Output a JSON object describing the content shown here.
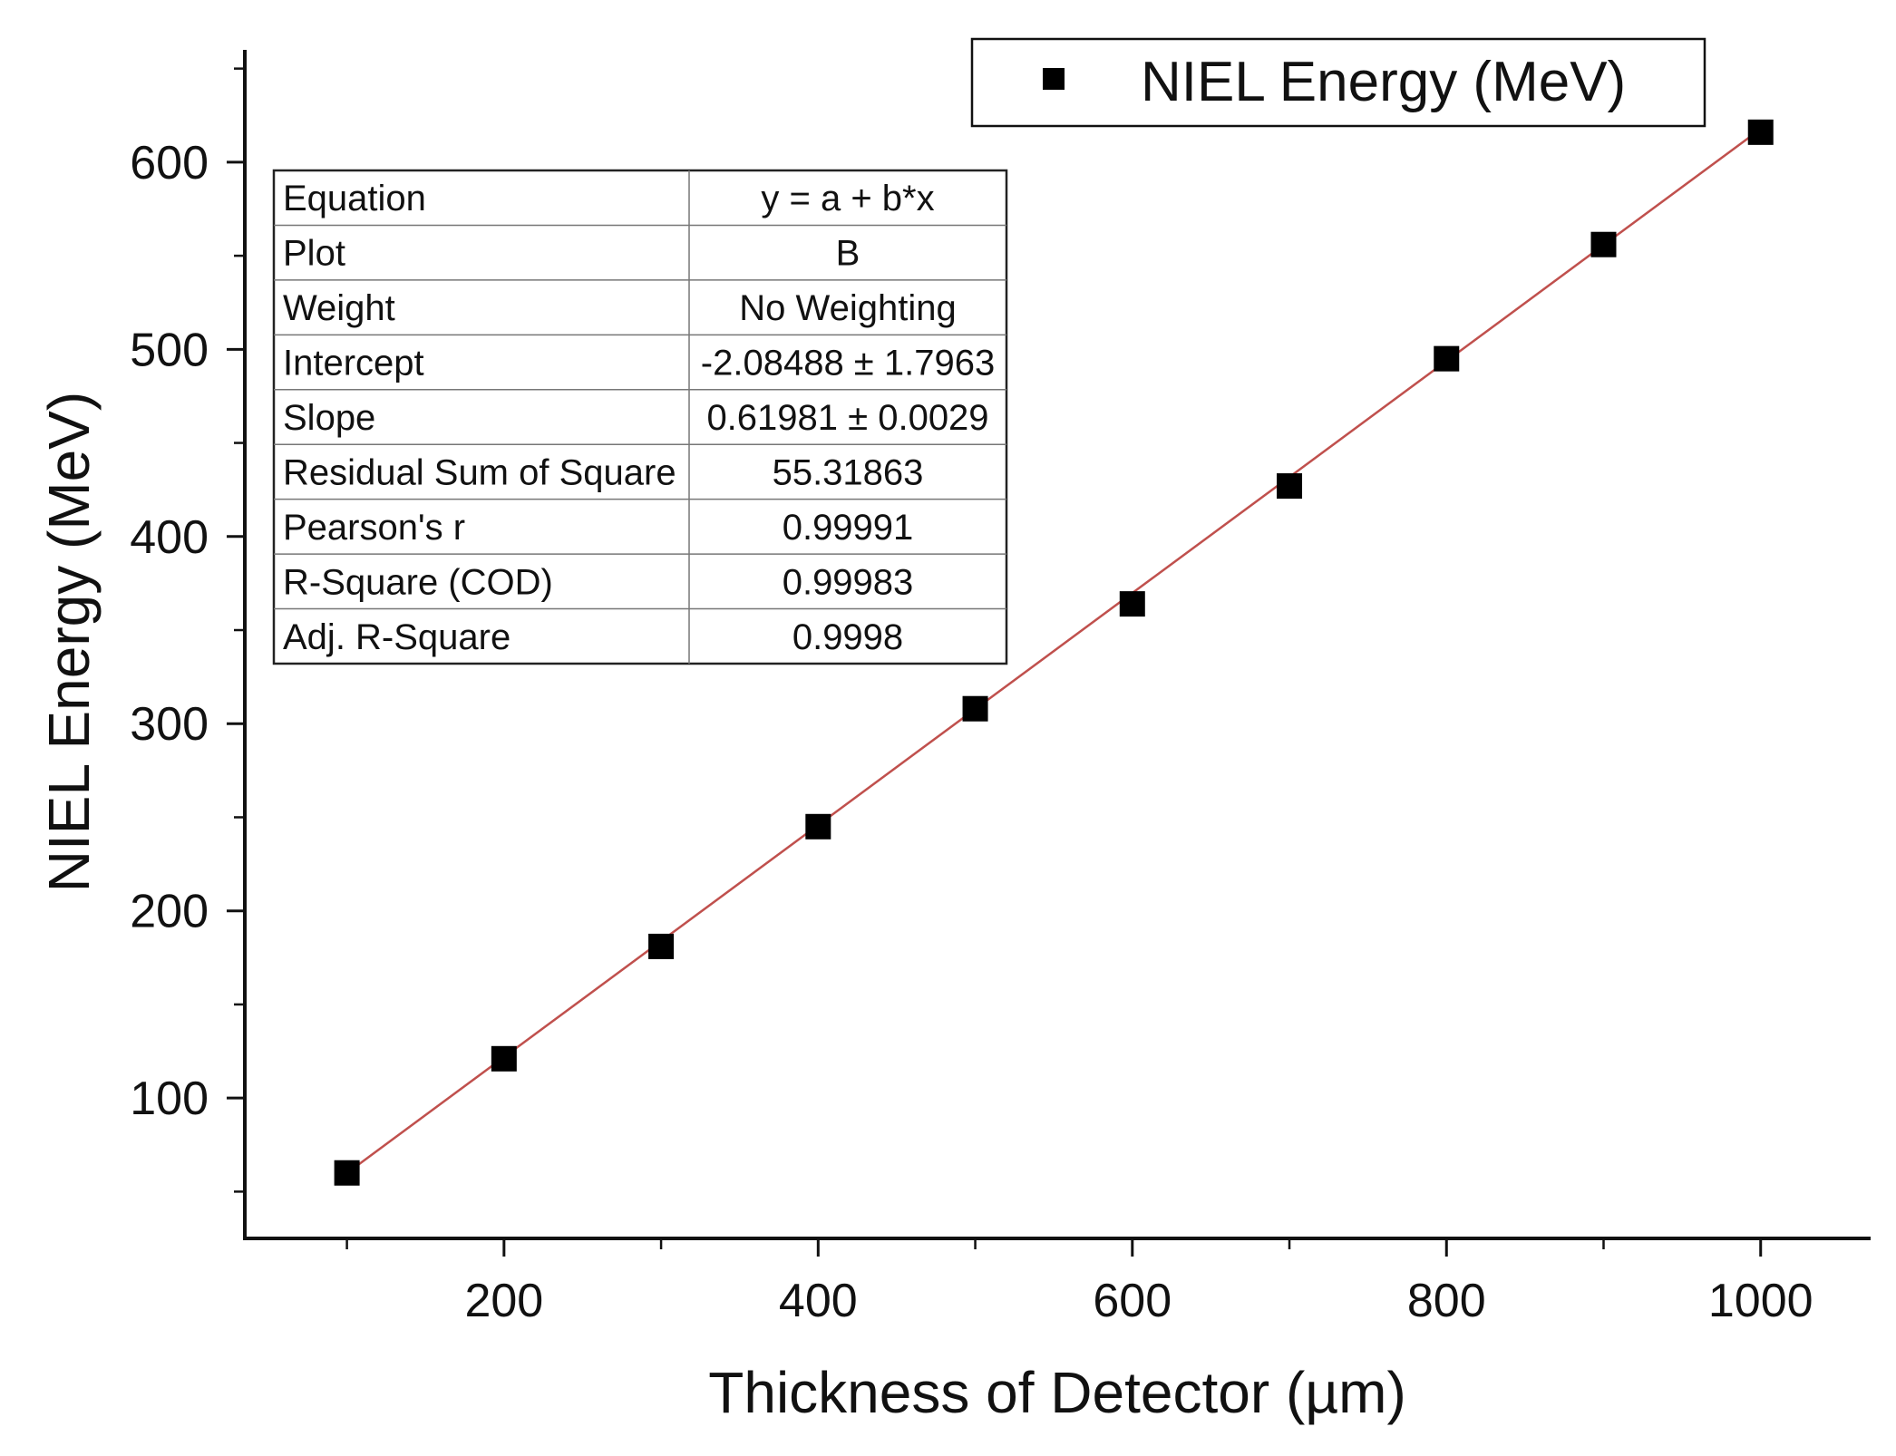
{
  "chart_data": {
    "type": "scatter",
    "title": "",
    "xlabel": "Thickness of Detector (µm)",
    "ylabel": "NIEL Energy (MeV)",
    "xlim": [
      35,
      1070
    ],
    "ylim": [
      25,
      660
    ],
    "x_ticks": [
      200,
      400,
      600,
      800,
      1000
    ],
    "x_tick_labels": [
      "200",
      "400",
      "600",
      "800",
      "1000"
    ],
    "x_minor_ticks": [
      100,
      300,
      500,
      700,
      900
    ],
    "y_ticks": [
      100,
      200,
      300,
      400,
      500,
      600
    ],
    "y_tick_labels": [
      "100",
      "200",
      "300",
      "400",
      "500",
      "600"
    ],
    "y_minor_ticks": [
      50,
      150,
      250,
      350,
      450,
      550,
      650
    ],
    "grid": false,
    "legend": {
      "position": "top-right",
      "entries": [
        "NIEL Energy (MeV)"
      ]
    },
    "series": [
      {
        "name": "NIEL Energy (MeV)",
        "marker": "square",
        "color": "#000000",
        "x": [
          100,
          200,
          300,
          400,
          500,
          600,
          700,
          800,
          900,
          1000
        ],
        "y": [
          60,
          121,
          181,
          245,
          308,
          364,
          427,
          495,
          556,
          616
        ]
      }
    ],
    "fit_line": {
      "intercept": -2.08488,
      "slope": 0.61981,
      "x_range": [
        100,
        1000
      ],
      "color": "#c0504d"
    },
    "fit_table": {
      "position": "top-left",
      "rows": [
        {
          "label": "Equation",
          "value": "y = a + b*x"
        },
        {
          "label": "Plot",
          "value": "B"
        },
        {
          "label": "Weight",
          "value": "No Weighting"
        },
        {
          "label": "Intercept",
          "value": "-2.08488 ± 1.7963"
        },
        {
          "label": "Slope",
          "value": "0.61981 ± 0.0029"
        },
        {
          "label": "Residual Sum of Square",
          "value": "55.31863"
        },
        {
          "label": "Pearson's r",
          "value": "0.99991"
        },
        {
          "label": "R-Square (COD)",
          "value": "0.99983"
        },
        {
          "label": "Adj. R-Square",
          "value": "0.9998"
        }
      ]
    }
  }
}
